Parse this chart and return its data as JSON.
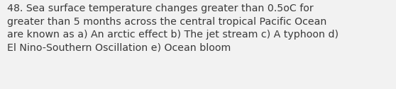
{
  "text": "48. Sea surface temperature changes greater than 0.5oC for\ngreater than 5 months across the central tropical Pacific Ocean\nare known as a) An arctic effect b) The jet stream c) A typhoon d)\nEl Nino-Southern Oscillation e) Ocean bloom",
  "background_color": "#f2f2f2",
  "text_color": "#3a3a3a",
  "font_size": 10.2,
  "fig_width": 5.58,
  "fig_height": 1.26,
  "dpi": 100
}
